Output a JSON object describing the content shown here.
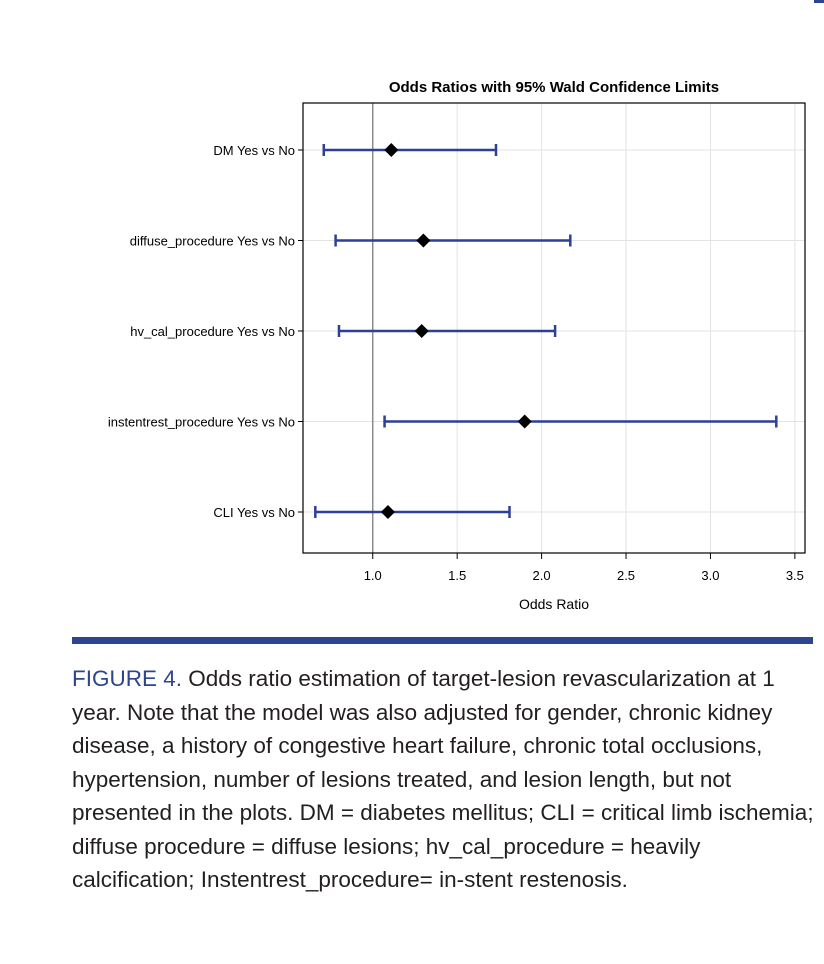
{
  "chart_data": {
    "type": "forest",
    "title": "Odds Ratios with 95% Wald Confidence Limits",
    "xlabel": "Odds Ratio",
    "ylabel": "",
    "xlim": [
      0.587,
      3.56
    ],
    "xticks": [
      "1.0",
      "1.5",
      "2.0",
      "2.5",
      "3.0",
      "3.5"
    ],
    "xtick_values": [
      1.0,
      1.5,
      2.0,
      2.5,
      3.0,
      3.5
    ],
    "reference_line": 1.0,
    "grid": true,
    "categories": [
      "DM Yes vs No",
      "diffuse_procedure Yes vs No",
      "hv_cal_procedure Yes vs No",
      "instentrest_procedure Yes vs No",
      "CLI Yes vs No"
    ],
    "estimate": [
      1.11,
      1.3,
      1.29,
      1.9,
      1.09
    ],
    "lower": [
      0.71,
      0.78,
      0.8,
      1.07,
      0.66
    ],
    "upper": [
      1.73,
      2.17,
      2.08,
      3.39,
      1.81
    ],
    "colors": {
      "ci": "#2d3f97",
      "marker": "#000000",
      "reference": "#8c8c8c",
      "grid": "#e3e3e3"
    }
  },
  "caption": {
    "label": "FIGURE 4.",
    "text": " Odds ratio estimation of target-lesion revascularization at 1 year. Note that the model was also adjusted for gender, chronic kidney disease, a history of congestive heart failure, chronic total occlusions, hypertension, number of lesions treated, and lesion length, but not presented in the plots. DM = diabetes mellitus; CLI = critical limb ischemia; diffuse procedure = diffuse lesions;  hv_cal_procedure = heavily calcification; Instentrest_procedure= in-stent restenosis."
  }
}
